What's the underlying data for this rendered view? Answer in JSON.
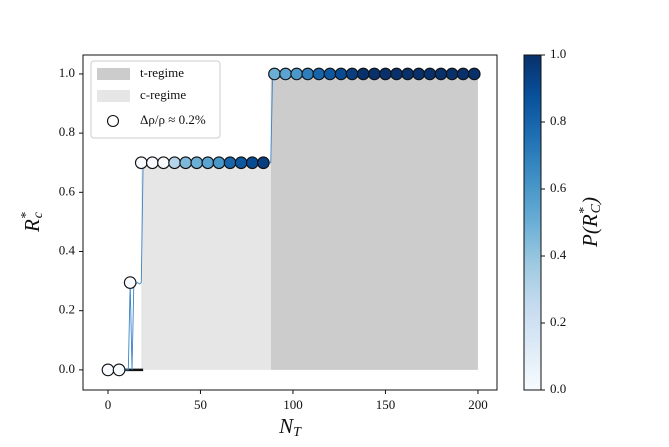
{
  "chart_data": {
    "type": "scatter",
    "xlabel": {
      "base": "N",
      "sub": "T"
    },
    "ylabel": {
      "base": "R",
      "sub": "c",
      "sup": "*"
    },
    "xlim": [
      -13.5,
      210.3
    ],
    "ylim": [
      -0.068,
      1.064
    ],
    "xticks": [
      0,
      50,
      100,
      150,
      200
    ],
    "yticks": [
      {
        "value": 0,
        "label": "0.0"
      },
      0.2,
      0.4,
      0.6,
      0.8,
      {
        "value": 1,
        "label": "1.0"
      }
    ],
    "regions": [
      {
        "name": "t-regime",
        "color": "#cccccc",
        "x": [
          88,
          200
        ],
        "height": 1.0
      },
      {
        "name": "c-regime",
        "color": "#e6e6e6",
        "x": [
          18,
          88
        ],
        "height": 0.7
      }
    ],
    "zero_segment": {
      "x": [
        9,
        19
      ],
      "y": 0
    },
    "line": {
      "color": "#3d85c6",
      "x": [
        0,
        11,
        12,
        13,
        14,
        15,
        16,
        17,
        18,
        19,
        87,
        88,
        89,
        200
      ],
      "values": [
        0,
        0,
        0.295,
        0,
        0.295,
        0.29,
        0.295,
        0.29,
        0.295,
        0.7,
        0.7,
        0.7,
        1,
        1
      ]
    },
    "series": [
      {
        "name": "Δρ/ρ ≈ 0.2%",
        "x": [
          0,
          6,
          12,
          18,
          24,
          30,
          36,
          42,
          48,
          54,
          60,
          66,
          72,
          78,
          84,
          90,
          96,
          102,
          108,
          114,
          120,
          126,
          132,
          138,
          144,
          150,
          156,
          162,
          168,
          174,
          180,
          186,
          192,
          198
        ],
        "values": [
          0,
          0,
          0.295,
          0.7,
          0.7,
          0.7,
          0.7,
          0.7,
          0.7,
          0.7,
          0.7,
          0.7,
          0.7,
          0.7,
          0.7,
          1,
          1,
          1,
          1,
          1,
          1,
          1,
          1,
          1,
          1,
          1,
          1,
          1,
          1,
          1,
          1,
          1,
          1,
          1
        ],
        "color_values": [
          0,
          0,
          0,
          0,
          0,
          0,
          0.3,
          0.45,
          0.5,
          0.55,
          0.6,
          0.8,
          0.85,
          0.9,
          0.95,
          0.5,
          0.55,
          0.6,
          0.7,
          0.8,
          0.85,
          0.9,
          0.95,
          1,
          1,
          1,
          1,
          1,
          1,
          1,
          1,
          1,
          1,
          1
        ]
      }
    ],
    "cmap_colors": [
      "#f7fbff",
      "#deebf7",
      "#c6dbef",
      "#9ecae1",
      "#6baed6",
      "#4292c6",
      "#2171b5",
      "#08519c",
      "#08306b"
    ],
    "colorbar": {
      "label": {
        "pre": "P(R",
        "sub": "C",
        "sup": "*",
        "post": ")"
      },
      "lim": [
        0,
        1
      ],
      "ticks": [
        {
          "value": 0,
          "label": "0.0"
        },
        0.2,
        0.4,
        0.6,
        0.8,
        {
          "value": 1,
          "label": "1.0"
        }
      ]
    }
  }
}
